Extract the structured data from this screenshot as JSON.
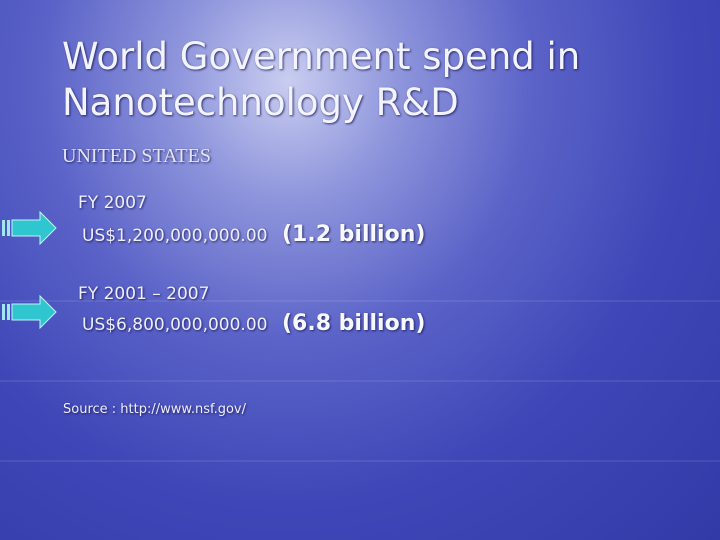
{
  "header": {
    "title_lines": [
      "World Government spend in",
      "Nanotechnology R&D"
    ],
    "subtitle": "UNITED STATES"
  },
  "items": [
    {
      "period": "FY 2007",
      "amount": "US$1,200,000,000.00",
      "summary": "(1.2 billion)"
    },
    {
      "period": "FY 2001 – 2007",
      "amount": "US$6,800,000,000.00",
      "summary": "(6.8 billion)"
    }
  ],
  "source": "Source : http://www.nsf.gov/"
}
